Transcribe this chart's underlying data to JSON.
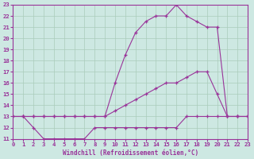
{
  "background_color": "#cde8e2",
  "grid_color": "#aaccbb",
  "line_color": "#993399",
  "xlim": [
    0,
    23
  ],
  "ylim": [
    11,
    23
  ],
  "xticks": [
    0,
    1,
    2,
    3,
    4,
    5,
    6,
    7,
    8,
    9,
    10,
    11,
    12,
    13,
    14,
    15,
    16,
    17,
    18,
    19,
    20,
    21,
    22,
    23
  ],
  "yticks": [
    11,
    12,
    13,
    14,
    15,
    16,
    17,
    18,
    19,
    20,
    21,
    22,
    23
  ],
  "xlabel": "Windchill (Refroidissement éolien,°C)",
  "line1_x": [
    0,
    1,
    2,
    3,
    4,
    5,
    6,
    7,
    8,
    9,
    10,
    11,
    12,
    13,
    14,
    15,
    16,
    17,
    18,
    19,
    20,
    21,
    22,
    23
  ],
  "line1_y": [
    13,
    13,
    12,
    11,
    11,
    11,
    11,
    11,
    12,
    12,
    12,
    12,
    12,
    12,
    12,
    12,
    12,
    13,
    13,
    13,
    13,
    13,
    13,
    13
  ],
  "line2_x": [
    0,
    1,
    2,
    3,
    4,
    5,
    6,
    7,
    8,
    9,
    10,
    11,
    12,
    13,
    14,
    15,
    16,
    17,
    18,
    19,
    20,
    21,
    22,
    23
  ],
  "line2_y": [
    13,
    13,
    13,
    13,
    13,
    13,
    13,
    13,
    13,
    13,
    13.5,
    14,
    14.5,
    15,
    15.5,
    16,
    16,
    16.5,
    17,
    17,
    15,
    13,
    13,
    13
  ],
  "line3_x": [
    0,
    1,
    2,
    3,
    4,
    5,
    6,
    7,
    8,
    9,
    10,
    11,
    12,
    13,
    14,
    15,
    16,
    17,
    18,
    19,
    20,
    21,
    22,
    23
  ],
  "line3_y": [
    13,
    13,
    13,
    13,
    13,
    13,
    13,
    13,
    13,
    13,
    16,
    18.5,
    20.5,
    21.5,
    22,
    22,
    23,
    22,
    21.5,
    21,
    21,
    13,
    13,
    13
  ]
}
